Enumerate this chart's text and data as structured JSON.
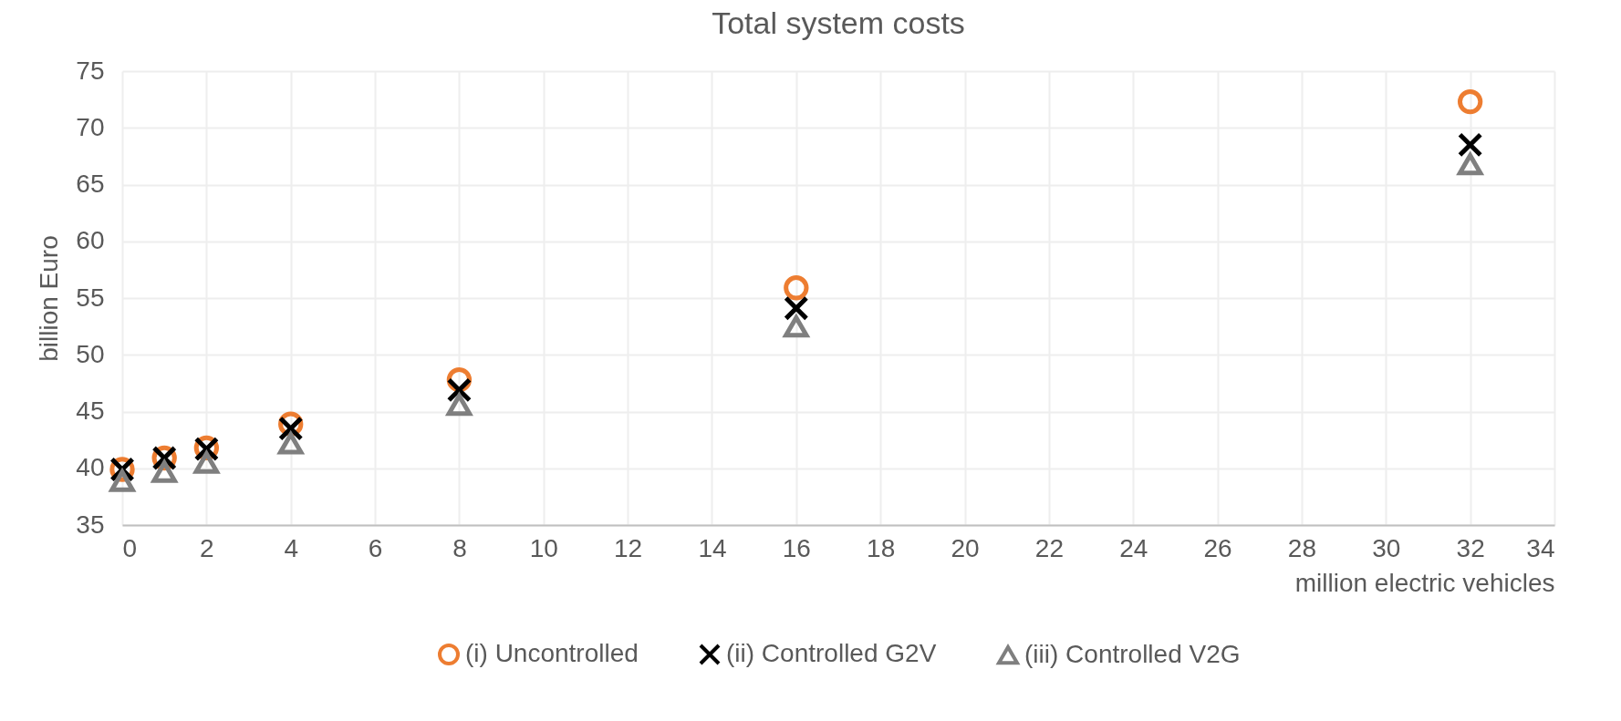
{
  "chart_data": {
    "type": "scatter",
    "title": "Total system costs",
    "xlabel": "million electric vehicles",
    "ylabel": "billion Euro",
    "x": [
      0,
      1,
      2,
      4,
      8,
      16,
      32
    ],
    "series": [
      {
        "name": "(i) Uncontrolled",
        "color": "#ed7d31",
        "marker": "circle",
        "values": [
          39.9,
          40.9,
          41.8,
          43.9,
          47.8,
          55.9,
          72.3
        ]
      },
      {
        "name": "(ii) Controlled G2V",
        "color": "#000000",
        "marker": "cross",
        "values": [
          39.9,
          40.9,
          41.7,
          43.5,
          46.9,
          54.1,
          68.5
        ]
      },
      {
        "name": "(iii) Controlled V2G",
        "color": "#7f7f7f",
        "marker": "triangle",
        "values": [
          38.9,
          39.7,
          40.5,
          42.2,
          45.6,
          52.5,
          66.8
        ]
      }
    ],
    "xlim": [
      0,
      34
    ],
    "xticks": [
      0,
      2,
      4,
      6,
      8,
      10,
      12,
      14,
      16,
      18,
      20,
      22,
      24,
      26,
      28,
      30,
      32,
      34
    ],
    "ylim": [
      35,
      75
    ],
    "yticks": [
      35,
      40,
      45,
      50,
      55,
      60,
      65,
      70,
      75
    ],
    "grid": true,
    "legend": "bottom"
  }
}
